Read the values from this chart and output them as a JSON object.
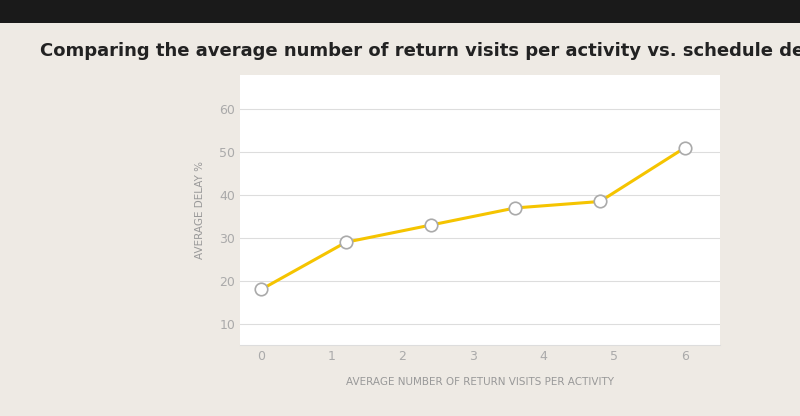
{
  "title": "Comparing the average number of return visits per activity vs. schedule delay (%)",
  "xlabel": "AVERAGE NUMBER OF RETURN VISITS PER ACTIVITY",
  "ylabel": "AVERAGE DELAY %",
  "x": [
    0,
    1.2,
    2.4,
    3.6,
    4.8,
    6.0
  ],
  "y": [
    18,
    29,
    33,
    37,
    38.5,
    51
  ],
  "line_color": "#F5C400",
  "marker_facecolor": "#FFFFFF",
  "marker_edgecolor": "#AAAAAA",
  "marker_size": 9,
  "marker_linewidth": 1.2,
  "line_width": 2.2,
  "bg_color": "#EEEAE4",
  "plot_bg_color": "#FFFFFF",
  "grid_color": "#DDDDDD",
  "title_color": "#222222",
  "axis_label_color": "#999999",
  "tick_color": "#AAAAAA",
  "ylim": [
    5,
    68
  ],
  "xlim": [
    -0.3,
    6.5
  ],
  "yticks": [
    10,
    20,
    30,
    40,
    50,
    60
  ],
  "xticks": [
    0,
    1,
    2,
    3,
    4,
    5,
    6
  ],
  "title_fontsize": 13,
  "axis_label_fontsize": 7.5,
  "tick_fontsize": 9,
  "top_bar_color": "#1A1A1A",
  "top_bar_height": 0.055
}
